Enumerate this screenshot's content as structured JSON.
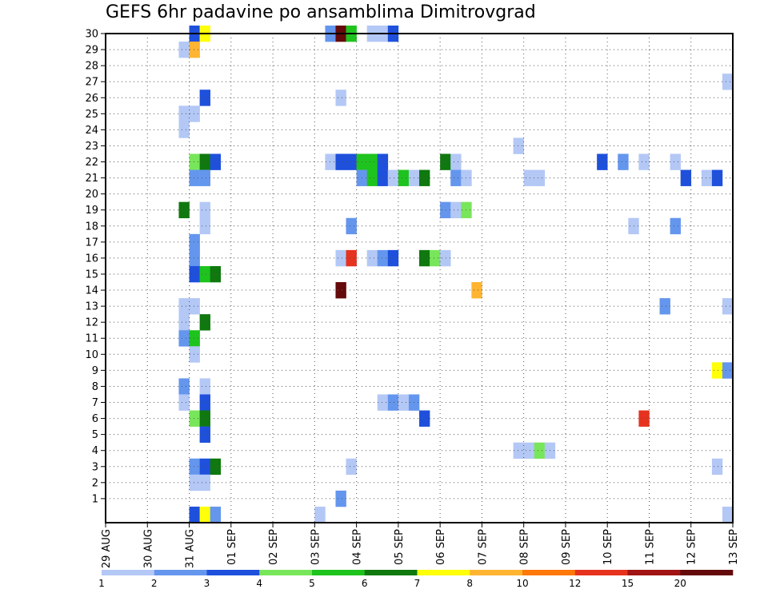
{
  "chart_data": {
    "type": "heatmap",
    "title": "GEFS 6hr padavine po ansamblima Dimitrovgrad",
    "y_ticks": [
      "1",
      "2",
      "3",
      "4",
      "5",
      "6",
      "7",
      "8",
      "9",
      "10",
      "11",
      "12",
      "13",
      "14",
      "15",
      "16",
      "17",
      "18",
      "19",
      "20",
      "21",
      "22",
      "23",
      "24",
      "25",
      "26",
      "27",
      "28",
      "29",
      "30"
    ],
    "ylim": [
      0,
      30
    ],
    "x_ticks": [
      "29 AUG",
      "30 AUG",
      "31 AUG",
      "01 SEP",
      "02 SEP",
      "03 SEP",
      "04 SEP",
      "05 SEP",
      "06 SEP",
      "07 SEP",
      "08 SEP",
      "09 SEP",
      "10 SEP",
      "11 SEP",
      "12 SEP",
      "13 SEP"
    ],
    "time_steps_per_day": 4,
    "total_time_steps": 60,
    "grid": "dotted",
    "legend_position": "bottom",
    "color_scale": {
      "labels": [
        "1",
        "2",
        "3",
        "4",
        "5",
        "6",
        "7",
        "8",
        "10",
        "12",
        "15",
        "20"
      ],
      "colors": [
        "#b4c8f6",
        "#6496ee",
        "#1e50dc",
        "#78e65a",
        "#1ec31e",
        "#0f780f",
        "#ffff0a",
        "#ffb432",
        "#ff780a",
        "#e6321e",
        "#a01414",
        "#640a0a"
      ]
    },
    "cells": [
      {
        "m": 30,
        "t": 8,
        "c": 3
      },
      {
        "m": 30,
        "t": 9,
        "c": 7
      },
      {
        "m": 30,
        "t": 21,
        "c": 2
      },
      {
        "m": 30,
        "t": 22,
        "c": 12
      },
      {
        "m": 30,
        "t": 23,
        "c": 5
      },
      {
        "m": 30,
        "t": 25,
        "c": 1
      },
      {
        "m": 30,
        "t": 26,
        "c": 1
      },
      {
        "m": 30,
        "t": 27,
        "c": 3
      },
      {
        "m": 29,
        "t": 7,
        "c": 1
      },
      {
        "m": 29,
        "t": 8,
        "c": 8
      },
      {
        "m": 27,
        "t": 59,
        "c": 1
      },
      {
        "m": 26,
        "t": 9,
        "c": 3
      },
      {
        "m": 26,
        "t": 22,
        "c": 1
      },
      {
        "m": 25,
        "t": 7,
        "c": 1
      },
      {
        "m": 25,
        "t": 8,
        "c": 1
      },
      {
        "m": 24,
        "t": 7,
        "c": 1
      },
      {
        "m": 23,
        "t": 39,
        "c": 1
      },
      {
        "m": 22,
        "t": 8,
        "c": 4
      },
      {
        "m": 22,
        "t": 9,
        "c": 6
      },
      {
        "m": 22,
        "t": 10,
        "c": 3
      },
      {
        "m": 22,
        "t": 21,
        "c": 1
      },
      {
        "m": 22,
        "t": 22,
        "c": 3
      },
      {
        "m": 22,
        "t": 23,
        "c": 3
      },
      {
        "m": 22,
        "t": 24,
        "c": 5
      },
      {
        "m": 22,
        "t": 25,
        "c": 5
      },
      {
        "m": 22,
        "t": 26,
        "c": 3
      },
      {
        "m": 22,
        "t": 32,
        "c": 6
      },
      {
        "m": 22,
        "t": 33,
        "c": 1
      },
      {
        "m": 22,
        "t": 47,
        "c": 3
      },
      {
        "m": 22,
        "t": 49,
        "c": 2
      },
      {
        "m": 22,
        "t": 51,
        "c": 1
      },
      {
        "m": 22,
        "t": 54,
        "c": 1
      },
      {
        "m": 21,
        "t": 8,
        "c": 2
      },
      {
        "m": 21,
        "t": 9,
        "c": 2
      },
      {
        "m": 21,
        "t": 24,
        "c": 2
      },
      {
        "m": 21,
        "t": 25,
        "c": 5
      },
      {
        "m": 21,
        "t": 26,
        "c": 3
      },
      {
        "m": 21,
        "t": 27,
        "c": 1
      },
      {
        "m": 21,
        "t": 28,
        "c": 5
      },
      {
        "m": 21,
        "t": 29,
        "c": 1
      },
      {
        "m": 21,
        "t": 30,
        "c": 6
      },
      {
        "m": 21,
        "t": 33,
        "c": 2
      },
      {
        "m": 21,
        "t": 34,
        "c": 1
      },
      {
        "m": 21,
        "t": 40,
        "c": 1
      },
      {
        "m": 21,
        "t": 41,
        "c": 1
      },
      {
        "m": 21,
        "t": 55,
        "c": 3
      },
      {
        "m": 21,
        "t": 57,
        "c": 1
      },
      {
        "m": 21,
        "t": 58,
        "c": 3
      },
      {
        "m": 19,
        "t": 7,
        "c": 6
      },
      {
        "m": 19,
        "t": 9,
        "c": 1
      },
      {
        "m": 19,
        "t": 32,
        "c": 2
      },
      {
        "m": 19,
        "t": 33,
        "c": 1
      },
      {
        "m": 19,
        "t": 34,
        "c": 4
      },
      {
        "m": 18,
        "t": 9,
        "c": 1
      },
      {
        "m": 18,
        "t": 23,
        "c": 2
      },
      {
        "m": 18,
        "t": 50,
        "c": 1
      },
      {
        "m": 18,
        "t": 54,
        "c": 2
      },
      {
        "m": 17,
        "t": 8,
        "c": 2
      },
      {
        "m": 16,
        "t": 8,
        "c": 2
      },
      {
        "m": 16,
        "t": 22,
        "c": 1
      },
      {
        "m": 16,
        "t": 23,
        "c": 10
      },
      {
        "m": 16,
        "t": 25,
        "c": 1
      },
      {
        "m": 16,
        "t": 26,
        "c": 2
      },
      {
        "m": 16,
        "t": 27,
        "c": 3
      },
      {
        "m": 16,
        "t": 30,
        "c": 6
      },
      {
        "m": 16,
        "t": 31,
        "c": 4
      },
      {
        "m": 16,
        "t": 32,
        "c": 1
      },
      {
        "m": 15,
        "t": 8,
        "c": 3
      },
      {
        "m": 15,
        "t": 9,
        "c": 5
      },
      {
        "m": 15,
        "t": 10,
        "c": 6
      },
      {
        "m": 14,
        "t": 22,
        "c": 12
      },
      {
        "m": 14,
        "t": 35,
        "c": 8
      },
      {
        "m": 13,
        "t": 7,
        "c": 1
      },
      {
        "m": 13,
        "t": 8,
        "c": 1
      },
      {
        "m": 13,
        "t": 53,
        "c": 2
      },
      {
        "m": 13,
        "t": 59,
        "c": 1
      },
      {
        "m": 12,
        "t": 7,
        "c": 1
      },
      {
        "m": 12,
        "t": 9,
        "c": 6
      },
      {
        "m": 11,
        "t": 7,
        "c": 2
      },
      {
        "m": 11,
        "t": 8,
        "c": 5
      },
      {
        "m": 10,
        "t": 8,
        "c": 1
      },
      {
        "m": 9,
        "t": 58,
        "c": 7
      },
      {
        "m": 9,
        "t": 59,
        "c": 2
      },
      {
        "m": 8,
        "t": 7,
        "c": 2
      },
      {
        "m": 8,
        "t": 9,
        "c": 1
      },
      {
        "m": 7,
        "t": 7,
        "c": 1
      },
      {
        "m": 7,
        "t": 9,
        "c": 3
      },
      {
        "m": 7,
        "t": 26,
        "c": 1
      },
      {
        "m": 7,
        "t": 27,
        "c": 2
      },
      {
        "m": 7,
        "t": 28,
        "c": 1
      },
      {
        "m": 7,
        "t": 29,
        "c": 2
      },
      {
        "m": 6,
        "t": 8,
        "c": 4
      },
      {
        "m": 6,
        "t": 9,
        "c": 6
      },
      {
        "m": 6,
        "t": 30,
        "c": 3
      },
      {
        "m": 6,
        "t": 51,
        "c": 10
      },
      {
        "m": 5,
        "t": 9,
        "c": 3
      },
      {
        "m": 4,
        "t": 39,
        "c": 1
      },
      {
        "m": 4,
        "t": 40,
        "c": 1
      },
      {
        "m": 4,
        "t": 41,
        "c": 4
      },
      {
        "m": 4,
        "t": 42,
        "c": 1
      },
      {
        "m": 3,
        "t": 8,
        "c": 2
      },
      {
        "m": 3,
        "t": 9,
        "c": 3
      },
      {
        "m": 3,
        "t": 10,
        "c": 6
      },
      {
        "m": 3,
        "t": 23,
        "c": 1
      },
      {
        "m": 3,
        "t": 58,
        "c": 1
      },
      {
        "m": 2,
        "t": 8,
        "c": 1
      },
      {
        "m": 2,
        "t": 9,
        "c": 1
      },
      {
        "m": 1,
        "t": 22,
        "c": 2
      },
      {
        "m": 0,
        "t": 8,
        "c": 3
      },
      {
        "m": 0,
        "t": 9,
        "c": 7
      },
      {
        "m": 0,
        "t": 10,
        "c": 2
      },
      {
        "m": 0,
        "t": 20,
        "c": 1
      },
      {
        "m": 0,
        "t": 59,
        "c": 1
      }
    ]
  }
}
